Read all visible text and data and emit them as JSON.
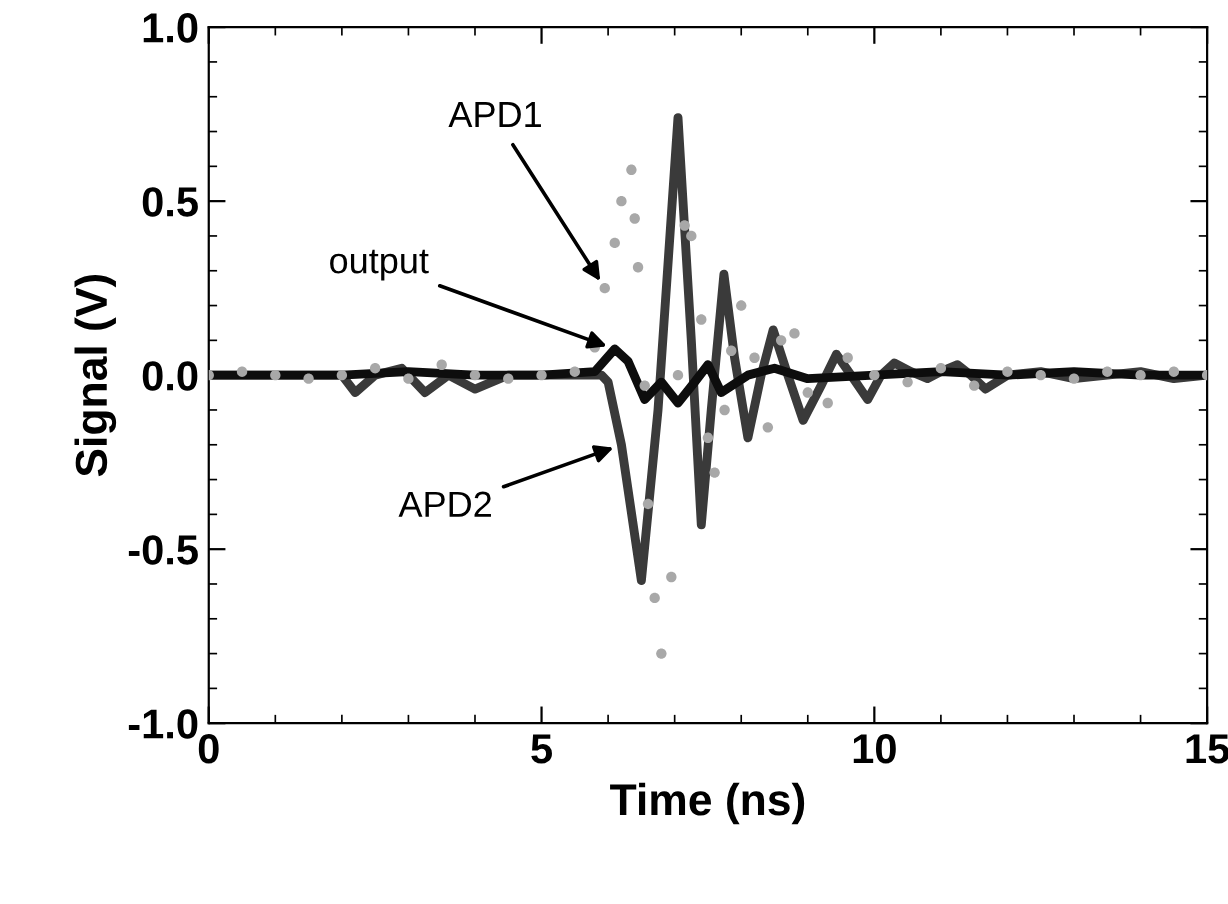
{
  "chart_data": {
    "type": "line",
    "xlabel": "Time (ns)",
    "ylabel": "Signal (V)",
    "xlim": [
      0,
      15
    ],
    "ylim": [
      -1.0,
      1.0
    ],
    "xticks": [
      0,
      5,
      10,
      15
    ],
    "yticks": [
      {
        "value": -1.0,
        "label": "-1.0"
      },
      {
        "value": -0.5,
        "label": "-0.5"
      },
      {
        "value": 0.0,
        "label": "0.0"
      },
      {
        "value": 0.5,
        "label": "0.5"
      },
      {
        "value": 1.0,
        "label": "1.0"
      }
    ],
    "grid": false,
    "legend": false,
    "series": [
      {
        "type": "scatter",
        "name": "APD1",
        "color": "#a8a8a8",
        "x": [
          0,
          0.5,
          1,
          1.5,
          2,
          2.5,
          3,
          3.5,
          4,
          4.5,
          5,
          5.5,
          5.8,
          5.95,
          6.1,
          6.2,
          6.35,
          6.4,
          6.45,
          6.55,
          6.6,
          6.7,
          6.8,
          6.95,
          7.05,
          7.15,
          7.25,
          7.4,
          7.5,
          7.6,
          7.75,
          7.85,
          8.0,
          8.2,
          8.4,
          8.6,
          8.8,
          9.0,
          9.3,
          9.6,
          10.0,
          10.5,
          11,
          11.5,
          12,
          12.5,
          13,
          13.5,
          14,
          14.5,
          15
        ],
        "values": [
          0.0,
          0.01,
          0.0,
          -0.01,
          0.0,
          0.02,
          -0.01,
          0.03,
          0.0,
          -0.01,
          0.0,
          0.01,
          0.08,
          0.25,
          0.38,
          0.5,
          0.59,
          0.45,
          0.31,
          -0.03,
          -0.37,
          -0.64,
          -0.8,
          -0.58,
          0.0,
          0.43,
          0.4,
          0.16,
          -0.18,
          -0.28,
          -0.1,
          0.07,
          0.2,
          0.05,
          -0.15,
          0.1,
          0.12,
          -0.05,
          -0.08,
          0.05,
          0.0,
          -0.02,
          0.02,
          -0.03,
          0.01,
          0.0,
          -0.01,
          0.01,
          0.0,
          0.01,
          0.0
        ]
      },
      {
        "name": "APD2",
        "color": "#3a3a3a",
        "x": [
          0,
          1,
          2,
          2.2,
          2.5,
          2.9,
          3.25,
          3.6,
          4.0,
          4.5,
          5,
          5.5,
          5.9,
          6.0,
          6.2,
          6.5,
          6.75,
          7.05,
          7.25,
          7.4,
          7.55,
          7.74,
          7.9,
          8.1,
          8.3,
          8.48,
          8.7,
          8.93,
          9.2,
          9.43,
          9.65,
          9.9,
          10.1,
          10.3,
          10.55,
          10.8,
          11.0,
          11.25,
          11.45,
          11.67,
          12.0,
          12.5,
          13,
          13.5,
          14,
          14.5,
          15
        ],
        "values": [
          0.0,
          0.0,
          0.0,
          -0.05,
          0.0,
          0.02,
          -0.05,
          0.0,
          -0.04,
          0.0,
          0.0,
          0.0,
          0.0,
          -0.02,
          -0.2,
          -0.59,
          -0.1,
          0.74,
          0.1,
          -0.43,
          -0.1,
          0.29,
          0.05,
          -0.18,
          0.0,
          0.13,
          0.0,
          -0.13,
          -0.03,
          0.06,
          0.0,
          -0.07,
          0.0,
          0.035,
          0.01,
          -0.01,
          0.01,
          0.03,
          0.0,
          -0.04,
          0.0,
          0.01,
          -0.01,
          0.0,
          0.01,
          -0.01,
          0.0
        ]
      },
      {
        "name": "output",
        "color": "#0d0d0d",
        "x": [
          0,
          2,
          3,
          4,
          5,
          5.8,
          6.1,
          6.3,
          6.55,
          6.8,
          7.05,
          7.3,
          7.5,
          7.7,
          8.1,
          8.5,
          9,
          10,
          11,
          12,
          13,
          14,
          15
        ],
        "values": [
          0.0,
          0.0,
          0.01,
          0.0,
          0.0,
          0.01,
          0.075,
          0.04,
          -0.07,
          -0.02,
          -0.08,
          -0.02,
          0.03,
          -0.05,
          0.0,
          0.02,
          -0.01,
          0.0,
          0.01,
          0.0,
          0.01,
          0.0,
          0.0
        ]
      }
    ]
  }
}
